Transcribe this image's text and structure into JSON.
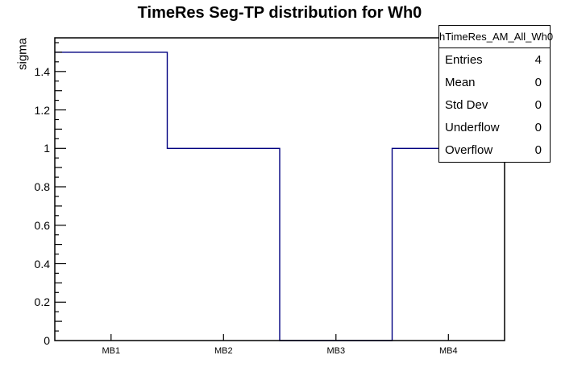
{
  "title": "TimeRes Seg-TP distribution for Wh0",
  "y_axis": {
    "label": "sigma",
    "tick_labels": [
      "0",
      "0.2",
      "0.4",
      "0.6",
      "0.8",
      "1",
      "1.2",
      "1.4"
    ]
  },
  "x_axis": {
    "labels": [
      "MB1",
      "MB2",
      "MB3",
      "MB4"
    ]
  },
  "stats_box": {
    "header": "hTimeRes_AM_All_Wh0",
    "rows": [
      {
        "label": "Entries",
        "value": "4"
      },
      {
        "label": "Mean",
        "value": "0"
      },
      {
        "label": "Std Dev",
        "value": "0"
      },
      {
        "label": "Underflow",
        "value": "0"
      },
      {
        "label": "Overflow",
        "value": "0"
      }
    ]
  },
  "colors": {
    "histogram_line": "#000080",
    "frame": "#000000",
    "background": "#ffffff"
  },
  "chart_data": {
    "type": "bar",
    "style": "step-histogram-outline",
    "categories": [
      "MB1",
      "MB2",
      "MB3",
      "MB4"
    ],
    "values": [
      1.5,
      1.0,
      0,
      1.0
    ],
    "title": "TimeRes Seg-TP distribution for Wh0",
    "xlabel": "",
    "ylabel": "sigma",
    "ylim": [
      0,
      1.575
    ],
    "ydivisions": {
      "major": 0.2,
      "mid": 0.1,
      "minor": 0.05
    },
    "grid": false,
    "legend": "none",
    "line_color": "#000080"
  }
}
